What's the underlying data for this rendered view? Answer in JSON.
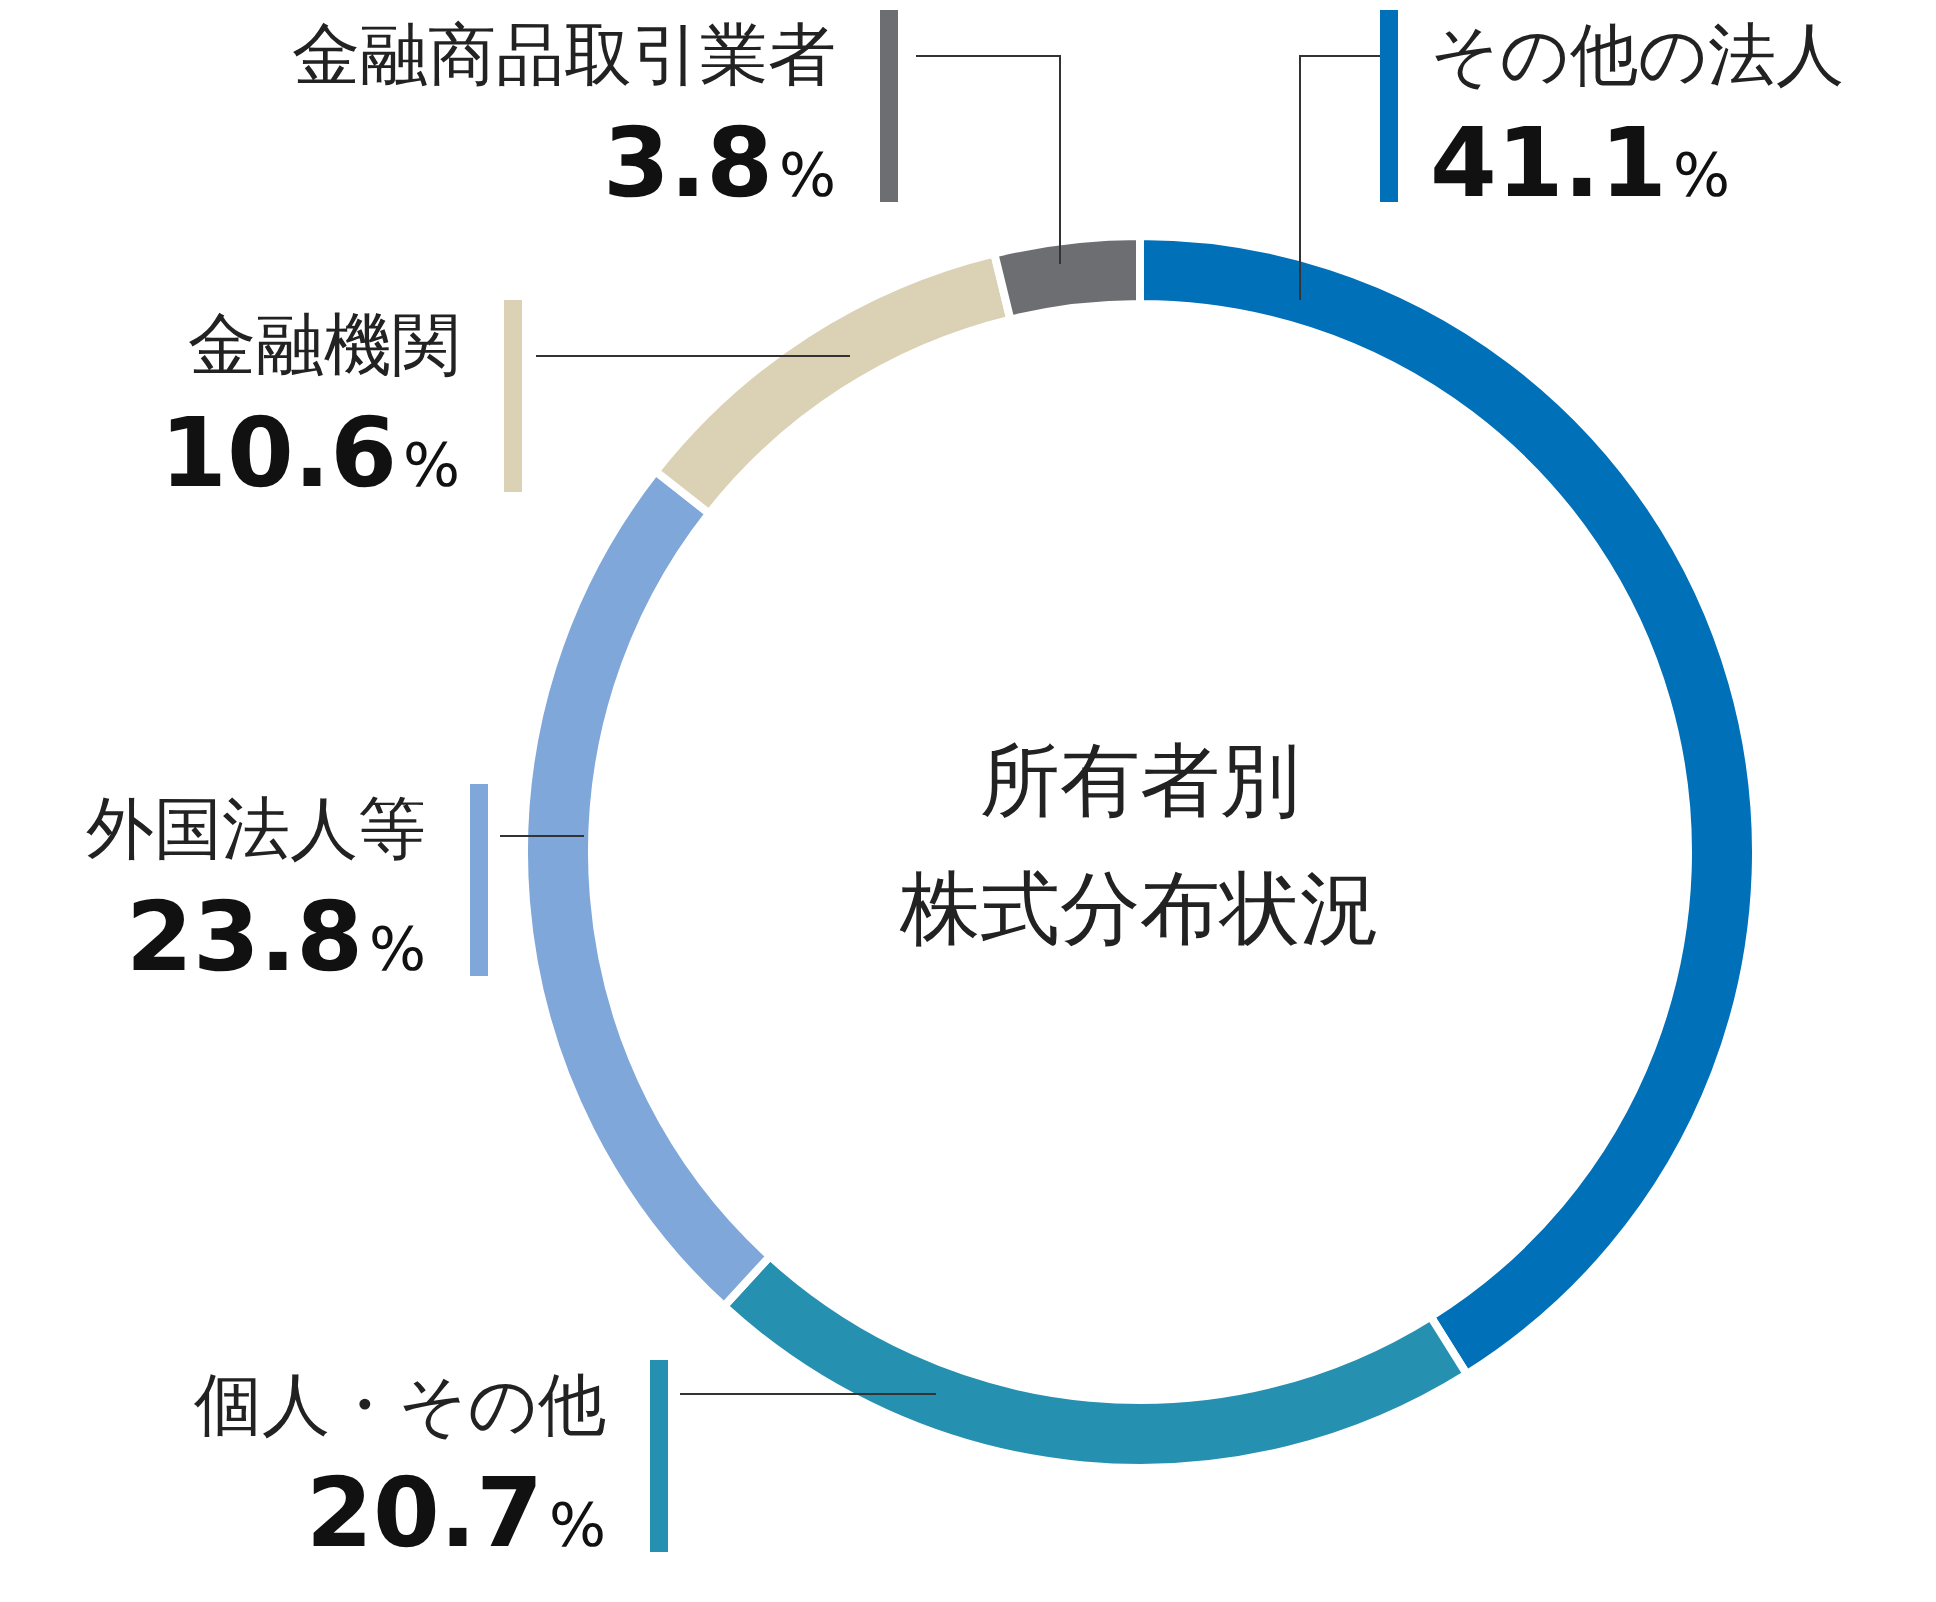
{
  "chart_data": {
    "type": "donut",
    "title": "所有者別",
    "subtitle": "株式分布状況",
    "categories": [
      "その他の法人",
      "個人・その他",
      "外国法人等",
      "金融機関",
      "金融商品取引業者"
    ],
    "values": [
      41.1,
      20.7,
      23.8,
      10.6,
      3.8
    ],
    "colors": [
      "#0070b9",
      "#2690b1",
      "#7fa7d9",
      "#dbd1b4",
      "#6d6e71"
    ],
    "value_labels": [
      "41.1%",
      "20.7%",
      "23.8%",
      "10.6%",
      "3.8%"
    ]
  }
}
